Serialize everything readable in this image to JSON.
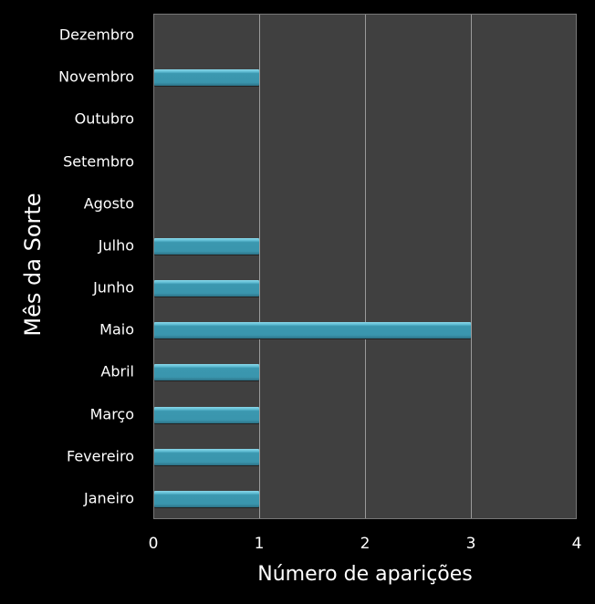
{
  "chart_data": {
    "type": "bar",
    "orientation": "horizontal",
    "title": "",
    "xlabel": "Número de aparições",
    "ylabel": "Mês da Sorte",
    "categories": [
      "Janeiro",
      "Fevereiro",
      "Março",
      "Abril",
      "Maio",
      "Junho",
      "Julho",
      "Agosto",
      "Setembro",
      "Outubro",
      "Novembro",
      "Dezembro"
    ],
    "values": [
      1,
      1,
      1,
      1,
      3,
      1,
      1,
      0,
      0,
      0,
      1,
      0
    ],
    "xlim": [
      0,
      4
    ],
    "xticks": [
      "0",
      "1",
      "2",
      "3",
      "4"
    ],
    "grid": true,
    "legend": null,
    "colors": {
      "bar": "#3a95ad",
      "plot_bg": "#404040",
      "page_bg": "#000000",
      "grid": "#9a9a9a",
      "text": "#ffffff"
    }
  }
}
